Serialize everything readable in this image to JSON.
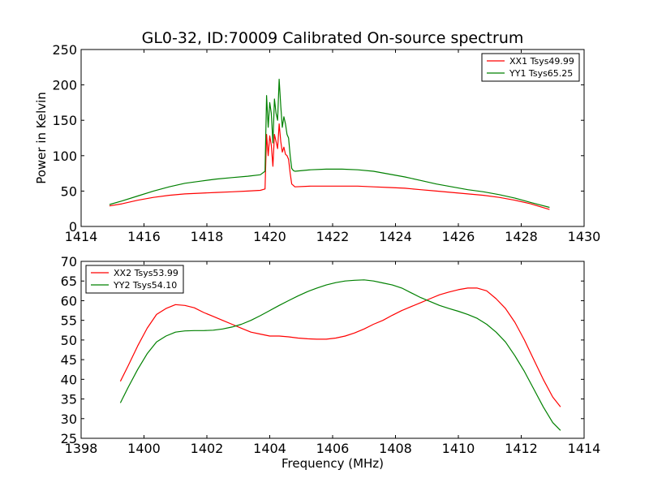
{
  "title": "GL0-32, ID:70009 Calibrated On-source spectrum",
  "chart_data": [
    {
      "type": "line",
      "title": "GL0-32, ID:70009 Calibrated On-source spectrum",
      "xlabel": "",
      "ylabel": "Power in Kelvin",
      "xlim": [
        1414,
        1430
      ],
      "ylim": [
        0,
        250
      ],
      "xticks": [
        "1414",
        "1416",
        "1418",
        "1420",
        "1422",
        "1424",
        "1426",
        "1428",
        "1430"
      ],
      "yticks": [
        "0",
        "50",
        "100",
        "150",
        "200",
        "250"
      ],
      "legend_position": "top-right",
      "grid": false,
      "series": [
        {
          "name": "XX1 Tsys49.99",
          "color": "#ff0000",
          "x": [
            1414.9,
            1415.3,
            1415.8,
            1416.3,
            1416.8,
            1417.3,
            1417.8,
            1418.3,
            1418.8,
            1419.3,
            1419.7,
            1419.85,
            1419.9,
            1419.95,
            1420.0,
            1420.05,
            1420.1,
            1420.15,
            1420.2,
            1420.25,
            1420.3,
            1420.35,
            1420.4,
            1420.45,
            1420.5,
            1420.55,
            1420.6,
            1420.65,
            1420.7,
            1420.75,
            1420.8,
            1421.3,
            1421.8,
            1422.3,
            1422.8,
            1423.3,
            1423.8,
            1424.3,
            1424.8,
            1425.3,
            1425.8,
            1426.3,
            1426.8,
            1427.3,
            1427.8,
            1428.3,
            1428.9
          ],
          "y": [
            29,
            32,
            37,
            41,
            44,
            46,
            47,
            48,
            49,
            50,
            51,
            53,
            130,
            100,
            128,
            115,
            85,
            130,
            120,
            110,
            145,
            120,
            105,
            112,
            102,
            100,
            95,
            75,
            60,
            58,
            56,
            57,
            57,
            57,
            57,
            56,
            55,
            54,
            52,
            50,
            48,
            46,
            44,
            41,
            37,
            32,
            24
          ]
        },
        {
          "name": "YY1 Tsys65.25",
          "color": "#008000",
          "x": [
            1414.9,
            1415.3,
            1415.8,
            1416.3,
            1416.8,
            1417.3,
            1417.8,
            1418.3,
            1418.8,
            1419.3,
            1419.7,
            1419.85,
            1419.9,
            1419.95,
            1420.0,
            1420.05,
            1420.1,
            1420.15,
            1420.2,
            1420.25,
            1420.3,
            1420.35,
            1420.4,
            1420.45,
            1420.5,
            1420.55,
            1420.6,
            1420.65,
            1420.7,
            1420.75,
            1420.8,
            1421.3,
            1421.8,
            1422.3,
            1422.8,
            1423.3,
            1423.8,
            1424.3,
            1424.8,
            1425.3,
            1425.8,
            1426.3,
            1426.8,
            1427.3,
            1427.8,
            1428.3,
            1428.9
          ],
          "y": [
            31,
            36,
            43,
            50,
            56,
            61,
            64,
            67,
            69,
            71,
            73,
            78,
            185,
            140,
            175,
            160,
            118,
            180,
            160,
            150,
            208,
            170,
            140,
            155,
            145,
            130,
            125,
            100,
            82,
            79,
            78,
            80,
            81,
            81,
            80,
            78,
            74,
            70,
            65,
            60,
            56,
            52,
            49,
            45,
            40,
            34,
            27
          ]
        }
      ]
    },
    {
      "type": "line",
      "title": "",
      "xlabel": "Frequency (MHz)",
      "ylabel": "",
      "xlim": [
        1398,
        1414
      ],
      "ylim": [
        25,
        70
      ],
      "xticks": [
        "1398",
        "1400",
        "1402",
        "1404",
        "1406",
        "1408",
        "1410",
        "1412",
        "1414"
      ],
      "yticks": [
        "25",
        "30",
        "35",
        "40",
        "45",
        "50",
        "55",
        "60",
        "65",
        "70"
      ],
      "legend_position": "top-left",
      "grid": false,
      "series": [
        {
          "name": "XX2 Tsys53.99",
          "color": "#ff0000",
          "x": [
            1399.25,
            1399.5,
            1399.8,
            1400.1,
            1400.4,
            1400.7,
            1401.0,
            1401.3,
            1401.6,
            1401.9,
            1402.2,
            1402.5,
            1402.8,
            1403.1,
            1403.4,
            1403.7,
            1404.0,
            1404.3,
            1404.6,
            1404.9,
            1405.2,
            1405.5,
            1405.8,
            1406.1,
            1406.4,
            1406.7,
            1407.0,
            1407.3,
            1407.6,
            1407.9,
            1408.2,
            1408.5,
            1408.8,
            1409.1,
            1409.4,
            1409.7,
            1410.0,
            1410.3,
            1410.6,
            1410.9,
            1411.2,
            1411.5,
            1411.8,
            1412.1,
            1412.4,
            1412.7,
            1413.0,
            1413.25
          ],
          "y": [
            39.5,
            43.5,
            48.5,
            53,
            56.5,
            58,
            59,
            58.8,
            58.2,
            57,
            56,
            55,
            54,
            53,
            52,
            51.5,
            51,
            51,
            50.8,
            50.5,
            50.3,
            50.2,
            50.2,
            50.5,
            51,
            51.8,
            52.8,
            54,
            55,
            56.3,
            57.5,
            58.5,
            59.5,
            60.5,
            61.5,
            62.2,
            62.8,
            63.2,
            63.2,
            62.5,
            60.5,
            58,
            54.5,
            50,
            45,
            40,
            35.5,
            33
          ]
        },
        {
          "name": "YY2 Tsys54.10",
          "color": "#008000",
          "x": [
            1399.25,
            1399.5,
            1399.8,
            1400.1,
            1400.4,
            1400.7,
            1401.0,
            1401.3,
            1401.6,
            1401.9,
            1402.2,
            1402.5,
            1402.8,
            1403.1,
            1403.4,
            1403.7,
            1404.0,
            1404.3,
            1404.6,
            1404.9,
            1405.2,
            1405.5,
            1405.8,
            1406.1,
            1406.4,
            1406.7,
            1407.0,
            1407.3,
            1407.6,
            1407.9,
            1408.2,
            1408.5,
            1408.8,
            1409.1,
            1409.4,
            1409.7,
            1410.0,
            1410.3,
            1410.6,
            1410.9,
            1411.2,
            1411.5,
            1411.8,
            1412.1,
            1412.4,
            1412.7,
            1413.0,
            1413.25
          ],
          "y": [
            34,
            38,
            42.5,
            46.5,
            49.5,
            51,
            52,
            52.3,
            52.4,
            52.4,
            52.5,
            52.8,
            53.3,
            54,
            55,
            56.2,
            57.5,
            58.8,
            60,
            61.2,
            62.3,
            63.2,
            64,
            64.6,
            65,
            65.2,
            65.3,
            65,
            64.5,
            64,
            63.2,
            62,
            60.8,
            59.8,
            58.8,
            58,
            57.3,
            56.5,
            55.5,
            54,
            52,
            49.5,
            46,
            42,
            37.5,
            33,
            29,
            27
          ]
        }
      ]
    }
  ]
}
